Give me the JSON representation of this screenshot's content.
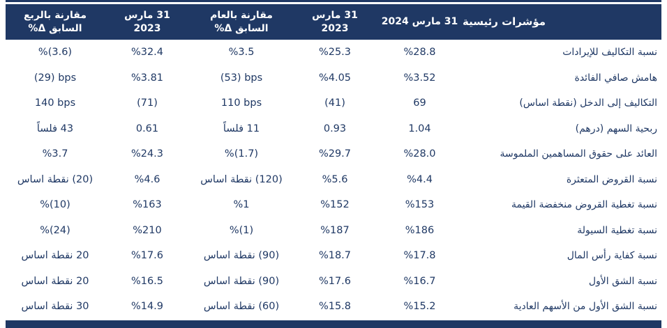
{
  "colors": {
    "navy": "#1F3864",
    "background": "#FFFFFF",
    "header_text": "#FFFFFF"
  },
  "header": {
    "indicator": "مؤشرات رئيسية",
    "mar2024": "31 مارس 2024",
    "mar2023_yoy": {
      "l1": "31 مارس",
      "l2": "2023"
    },
    "yoy_delta": {
      "l1": "مقارنة بالعام",
      "l2": "السابق Δ%"
    },
    "mar2023_qoq": {
      "l1": "31 مارس",
      "l2": "2023"
    },
    "qoq_delta": {
      "l1": "مقارنة بالربع",
      "l2": "السابق Δ%"
    }
  },
  "rows": [
    {
      "label": "نسبة التكاليف للإيرادات",
      "mar2024": "%28.8",
      "mar2023y": "%25.3",
      "yoy": "%3.5",
      "mar2023q": "%32.4",
      "qoq": "%(3.6)"
    },
    {
      "label": "هامش صافي الفائدة",
      "mar2024": "%3.52",
      "mar2023y": "%4.05",
      "yoy": "(53) bps",
      "mar2023q": "%3.81",
      "qoq": "(29) bps"
    },
    {
      "label": "التكاليف إلى الدخل (نقطة اساس)",
      "mar2024": "69",
      "mar2023y": "(41)",
      "yoy": "110 bps",
      "mar2023q": "(71)",
      "qoq": "140 bps"
    },
    {
      "label": "ربحية السهم (درهم)",
      "mar2024": "1.04",
      "mar2023y": "0.93",
      "yoy": "11 فلساً",
      "mar2023q": "0.61",
      "qoq": "43 فلساً"
    },
    {
      "label": "العائد على حقوق المساهمين الملموسة",
      "mar2024": "%28.0",
      "mar2023y": "%29.7",
      "yoy": "%(1.7)",
      "mar2023q": "%24.3",
      "qoq": "%3.7"
    },
    {
      "label": "نسبة القروض المتعثرة",
      "mar2024": "%4.4",
      "mar2023y": "%5.6",
      "yoy": "(120) نقطة اساس",
      "mar2023q": "%4.6",
      "qoq": "(20) نقطة اساس"
    },
    {
      "label": "نسبة تغطية القروض منخفضة القيمة",
      "mar2024": "%153",
      "mar2023y": "%152",
      "yoy": "%1",
      "mar2023q": "%163",
      "qoq": "%(10)"
    },
    {
      "label": "نسبة تغطية السيولة",
      "mar2024": "%186",
      "mar2023y": "%187",
      "yoy": "%(1)",
      "mar2023q": "%210",
      "qoq": "%(24)"
    },
    {
      "label": "نسبة كفاية رأس المال",
      "mar2024": "%17.8",
      "mar2023y": "%18.7",
      "yoy": "(90) نقطة اساس",
      "mar2023q": "%17.6",
      "qoq": "20 نقطة اساس"
    },
    {
      "label": "نسبة الشق الأول",
      "mar2024": "%16.7",
      "mar2023y": "%17.6",
      "yoy": "(90) نقطة اساس",
      "mar2023q": "%16.5",
      "qoq": "20 نقطة اساس"
    },
    {
      "label": "نسبة الشق الأول من الأسهم العادية",
      "mar2024": "%15.2",
      "mar2023y": "%15.8",
      "yoy": "(60) نقطة اساس",
      "mar2023q": "%14.9",
      "qoq": "30 نقطة اساس"
    }
  ]
}
